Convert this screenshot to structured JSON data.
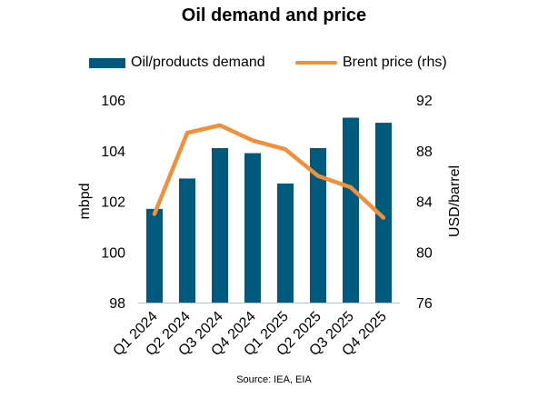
{
  "chart_data": {
    "type": "bar",
    "title": "Oil demand and price",
    "categories": [
      "Q1 2024",
      "Q2 2024",
      "Q3 2024",
      "Q4 2024",
      "Q1 2025",
      "Q2 2025",
      "Q3 2025",
      "Q4 2025"
    ],
    "series": [
      {
        "name": "Oil/products demand",
        "type": "bar",
        "axis": "left",
        "color": "#005a7e",
        "values": [
          101.7,
          102.9,
          104.1,
          103.9,
          102.7,
          104.1,
          105.3,
          105.1
        ]
      },
      {
        "name": "Brent price (rhs)",
        "type": "line",
        "axis": "right",
        "color": "#f0913a",
        "values": [
          83.0,
          89.4,
          90.0,
          88.8,
          88.1,
          86.0,
          85.1,
          82.7
        ]
      }
    ],
    "ylabel": "mbpd",
    "ylim": [
      98,
      106
    ],
    "yticks": [
      "98",
      "100",
      "102",
      "104",
      "106"
    ],
    "y2label": "USD/barrel",
    "y2lim": [
      76,
      92
    ],
    "y2ticks": [
      "76",
      "80",
      "84",
      "88",
      "92"
    ],
    "legend_position": "top",
    "grid": false,
    "source": "Source: IEA, EIA"
  }
}
